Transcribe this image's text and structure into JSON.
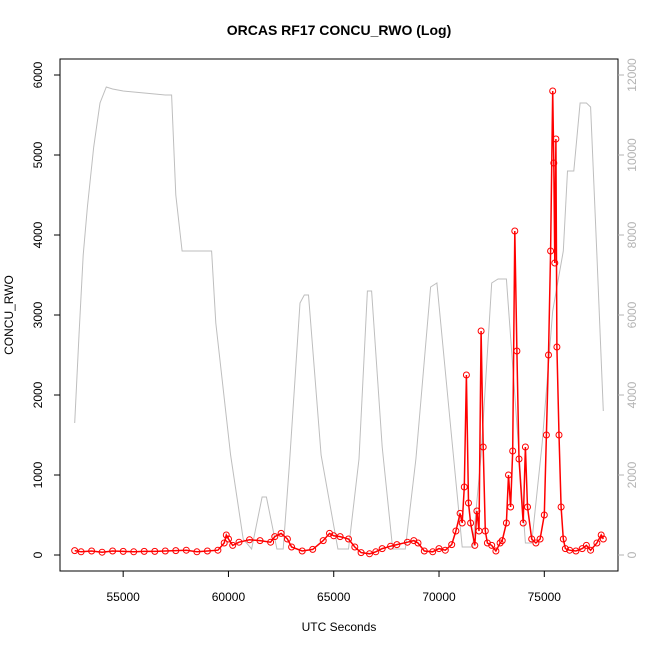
{
  "chart_data": {
    "type": "line",
    "title": "ORCAS RF17 CONCU_RWO (Log)",
    "xlabel": "UTC Seconds",
    "ylabel": "CONCU_RWO",
    "xlim": [
      52000,
      78500
    ],
    "ylim": [
      -200,
      6200
    ],
    "y2lim": [
      -400,
      12400
    ],
    "x_ticks": [
      55000,
      60000,
      65000,
      70000,
      75000
    ],
    "y_ticks": [
      0,
      1000,
      2000,
      3000,
      4000,
      5000,
      6000
    ],
    "y2_ticks": [
      0,
      2000,
      4000,
      6000,
      8000,
      10000,
      12000
    ],
    "grid": false,
    "colors": {
      "concu_rwo": "#ff0000",
      "secondary": "#bebebe",
      "axis": "#000000",
      "right_axis": "#b3b3b3"
    },
    "series": [
      {
        "axis": "right",
        "style": "line",
        "x": [
          52700,
          52900,
          53100,
          53300,
          53600,
          53900,
          54200,
          54500,
          55000,
          56000,
          57000,
          57300,
          57500,
          57800,
          58500,
          59200,
          59400,
          60100,
          60700,
          61100,
          61600,
          61800,
          62300,
          62600,
          62900,
          63400,
          63600,
          63800,
          64400,
          65200,
          65700,
          66200,
          66600,
          66800,
          67300,
          67800,
          68400,
          68900,
          69600,
          69900,
          70500,
          71100,
          71600,
          72000,
          72500,
          72800,
          73200,
          73600,
          74100,
          74400,
          74900,
          75400,
          75900,
          76100,
          76400,
          76700,
          77000,
          77200,
          77500,
          77800
        ],
        "y": [
          3300,
          5500,
          7500,
          8700,
          10200,
          11300,
          11700,
          11650,
          11600,
          11550,
          11500,
          11500,
          9000,
          7600,
          7600,
          7600,
          5800,
          2500,
          400,
          150,
          1450,
          1450,
          150,
          150,
          2300,
          6300,
          6500,
          6500,
          2500,
          150,
          150,
          2400,
          6600,
          6600,
          2700,
          150,
          150,
          2400,
          6700,
          6800,
          3500,
          200,
          200,
          2500,
          6800,
          6900,
          6900,
          4000,
          300,
          300,
          2800,
          6100,
          7600,
          9600,
          9600,
          11300,
          11300,
          11200,
          7500,
          3600
        ]
      },
      {
        "axis": "left",
        "style": "points-line",
        "x": [
          52700,
          53000,
          53500,
          54000,
          54500,
          55000,
          55500,
          56000,
          56500,
          57000,
          57500,
          58000,
          58500,
          59000,
          59500,
          59800,
          59900,
          60000,
          60200,
          60500,
          61000,
          61500,
          62000,
          62200,
          62500,
          62800,
          63000,
          63500,
          64000,
          64500,
          64800,
          65000,
          65300,
          65700,
          66000,
          66300,
          66700,
          67000,
          67300,
          67700,
          68000,
          68500,
          68800,
          69000,
          69300,
          69700,
          70000,
          70300,
          70600,
          70800,
          71000,
          71100,
          71200,
          71300,
          71400,
          71500,
          71700,
          71800,
          71900,
          72000,
          72100,
          72200,
          72300,
          72500,
          72700,
          72900,
          73000,
          73200,
          73300,
          73400,
          73500,
          73600,
          73700,
          73800,
          74000,
          74100,
          74200,
          74400,
          74600,
          74800,
          75000,
          75100,
          75200,
          75300,
          75400,
          75450,
          75500,
          75550,
          75600,
          75700,
          75800,
          75900,
          76000,
          76200,
          76500,
          76800,
          77000,
          77200,
          77500,
          77700,
          77800
        ],
        "y": [
          55,
          40,
          50,
          35,
          50,
          45,
          40,
          45,
          45,
          50,
          55,
          60,
          40,
          50,
          60,
          150,
          250,
          200,
          120,
          160,
          190,
          180,
          160,
          230,
          270,
          200,
          100,
          50,
          70,
          180,
          270,
          240,
          230,
          200,
          100,
          30,
          15,
          40,
          80,
          110,
          130,
          160,
          180,
          150,
          50,
          40,
          80,
          60,
          130,
          300,
          520,
          400,
          850,
          2250,
          650,
          400,
          120,
          550,
          300,
          2800,
          1350,
          300,
          150,
          120,
          50,
          150,
          180,
          400,
          1000,
          600,
          1300,
          4050,
          2550,
          1200,
          400,
          1350,
          600,
          200,
          150,
          200,
          500,
          1500,
          2500,
          3800,
          5800,
          4900,
          3650,
          5200,
          2600,
          1500,
          600,
          200,
          80,
          60,
          50,
          80,
          120,
          60,
          150,
          250,
          200
        ]
      }
    ]
  }
}
